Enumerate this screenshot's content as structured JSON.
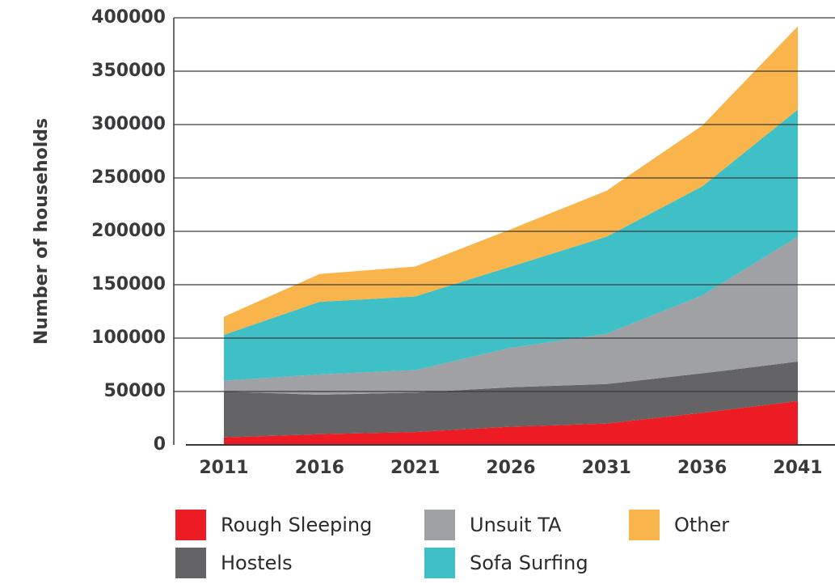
{
  "chart_data": {
    "type": "area",
    "y_label": "Number of households",
    "x": [
      2011,
      2016,
      2021,
      2026,
      2031,
      2036,
      2041
    ],
    "series": [
      {
        "name": "Rough Sleeping",
        "color": "#ed1c24",
        "values": [
          7000,
          10000,
          12000,
          17000,
          20000,
          30000,
          41000
        ]
      },
      {
        "name": "Hostels",
        "color": "#646466",
        "values": [
          43000,
          37000,
          37000,
          37000,
          37000,
          37000,
          37000
        ]
      },
      {
        "name": "Unsuit TA",
        "color": "#a0a1a4",
        "values": [
          10000,
          19000,
          21000,
          37000,
          47000,
          73000,
          117000
        ]
      },
      {
        "name": "Sofa Surfing",
        "color": "#3fbfc6",
        "values": [
          43000,
          68000,
          69000,
          76000,
          91000,
          102000,
          119000
        ]
      },
      {
        "name": "Other",
        "color": "#f9b54c",
        "values": [
          17000,
          26000,
          28000,
          35000,
          43000,
          57000,
          78000
        ]
      }
    ],
    "stacked": true,
    "ylim": [
      0,
      400000
    ],
    "yticks": [
      0,
      50000,
      100000,
      150000,
      200000,
      250000,
      300000,
      350000,
      400000
    ],
    "grid": true,
    "legend": "bottom"
  }
}
